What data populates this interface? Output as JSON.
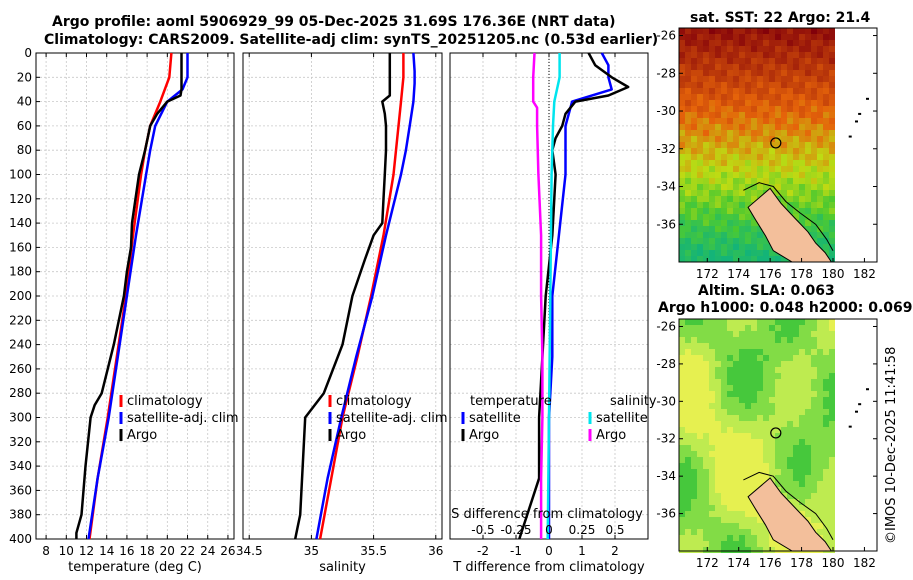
{
  "titles": {
    "line1": "Argo profile: aoml 5906929_99 05-Dec-2025 31.69S 176.36E (NRT data)",
    "line2": "Climatology: CARS2009. Satellite-adj clim: synTS_20251205.nc (0.53d earlier)",
    "sst": "sat. SST: 22 Argo: 21.4",
    "sla1": "Altim. SLA: 0.063",
    "sla2": "Argo h1000: 0.048 h2000: 0.069"
  },
  "credit": "©IMOS 10-Dec-2025 11:41:58",
  "colors": {
    "climatology": "#ff0000",
    "satellite": "#0000ff",
    "argo": "#000000",
    "sal_satellite": "#00e5ee",
    "sal_argo": "#ff00ff"
  },
  "chart_data": [
    {
      "type": "line",
      "name": "temperature",
      "xlabel": "temperature (deg C)",
      "ylabel": "",
      "xlim": [
        7,
        26.6
      ],
      "ylim": [
        0,
        400
      ],
      "y_inverted": true,
      "xticks": [
        "8",
        "10",
        "12",
        "14",
        "16",
        "18",
        "20",
        "22",
        "24",
        "26"
      ],
      "yticks": [
        "0",
        "20",
        "40",
        "60",
        "80",
        "100",
        "120",
        "140",
        "160",
        "180",
        "200",
        "220",
        "240",
        "260",
        "280",
        "300",
        "320",
        "340",
        "360",
        "380",
        "400"
      ],
      "legend": [
        "climatology",
        "satellite-adj. clim",
        "Argo"
      ],
      "series": [
        {
          "name": "climatology",
          "color": "red",
          "depth": [
            0,
            20,
            40,
            60,
            80,
            100,
            150,
            200,
            250,
            300,
            350,
            400
          ],
          "values": [
            20.4,
            20.2,
            19.3,
            18.3,
            17.8,
            17.4,
            16.6,
            15.9,
            15.0,
            14.1,
            13.1,
            12.3
          ]
        },
        {
          "name": "satellite-adj. clim",
          "color": "blue",
          "depth": [
            0,
            20,
            30,
            40,
            60,
            80,
            100,
            150,
            200,
            250,
            300,
            350,
            400
          ],
          "values": [
            22.0,
            22.0,
            21.5,
            20.0,
            18.8,
            18.3,
            17.9,
            16.9,
            16.0,
            15.1,
            14.2,
            13.1,
            12.2
          ]
        },
        {
          "name": "Argo",
          "color": "black",
          "depth": [
            0,
            10,
            30,
            35,
            40,
            50,
            60,
            80,
            100,
            140,
            160,
            180,
            200,
            240,
            280,
            290,
            300,
            340,
            380,
            395,
            400
          ],
          "values": [
            21.4,
            21.4,
            21.4,
            21.3,
            20.0,
            19.0,
            18.3,
            17.8,
            17.2,
            16.5,
            16.4,
            16.0,
            15.7,
            14.7,
            13.5,
            12.8,
            12.4,
            11.9,
            11.5,
            11.0,
            11.0
          ]
        }
      ]
    },
    {
      "type": "line",
      "name": "salinity",
      "xlabel": "salinity",
      "xlim": [
        34.45,
        36.05
      ],
      "ylim": [
        0,
        400
      ],
      "y_inverted": true,
      "xticks": [
        "34.5",
        "35",
        "35.5",
        "36"
      ],
      "legend": [
        "climatology",
        "satellite-adj. clim",
        "Argo"
      ],
      "series": [
        {
          "name": "climatology",
          "color": "red",
          "depth": [
            0,
            20,
            40,
            60,
            80,
            100,
            150,
            200,
            250,
            300,
            350,
            400
          ],
          "values": [
            35.74,
            35.74,
            35.72,
            35.7,
            35.68,
            35.66,
            35.58,
            35.48,
            35.37,
            35.25,
            35.16,
            35.07
          ]
        },
        {
          "name": "satellite-adj. clim",
          "color": "blue",
          "depth": [
            0,
            15,
            25,
            40,
            60,
            80,
            100,
            150,
            200,
            250,
            300,
            350,
            400
          ],
          "values": [
            35.82,
            35.83,
            35.83,
            35.82,
            35.79,
            35.76,
            35.72,
            35.6,
            35.49,
            35.36,
            35.24,
            35.13,
            35.04
          ]
        },
        {
          "name": "Argo",
          "color": "black",
          "depth": [
            0,
            20,
            35,
            40,
            50,
            60,
            80,
            100,
            120,
            140,
            150,
            170,
            200,
            240,
            280,
            300,
            340,
            380,
            390,
            400
          ],
          "values": [
            35.63,
            35.63,
            35.63,
            35.57,
            35.59,
            35.6,
            35.6,
            35.59,
            35.58,
            35.57,
            35.5,
            35.43,
            35.33,
            35.25,
            35.1,
            34.95,
            34.93,
            34.91,
            34.89,
            34.87
          ]
        }
      ]
    },
    {
      "type": "line",
      "name": "differences",
      "xlabel": "T difference from climatology",
      "xlabel_top": "S difference from climatology",
      "xlim": [
        -3,
        3
      ],
      "xlim_salinity": [
        -0.75,
        0.75
      ],
      "ylim": [
        0,
        400
      ],
      "y_inverted": true,
      "xticks": [
        "-2",
        "-1",
        "0",
        "1",
        "2"
      ],
      "xticks_top": [
        "-0.5",
        "-0.25",
        "0",
        "0.25",
        "0.5"
      ],
      "legend_temperature": {
        "title": "temperature",
        "items": [
          "satellite",
          "Argo"
        ]
      },
      "legend_salinity": {
        "title": "salinity",
        "items": [
          "satellite",
          "Argo"
        ]
      },
      "series": [
        {
          "name": "temperature satellite",
          "color": "blue",
          "depth": [
            0,
            10,
            20,
            30,
            40,
            60,
            80,
            100,
            150,
            200,
            250,
            300,
            350,
            400
          ],
          "values": [
            1.6,
            1.8,
            1.8,
            1.9,
            0.7,
            0.5,
            0.5,
            0.5,
            0.3,
            0.1,
            0.1,
            0.0,
            0.0,
            0.0
          ]
        },
        {
          "name": "temperature Argo",
          "color": "black",
          "depth": [
            0,
            10,
            20,
            28,
            35,
            40,
            50,
            60,
            70,
            80,
            100,
            150,
            200,
            250,
            300,
            350,
            400
          ],
          "values": [
            1.2,
            1.4,
            1.9,
            2.4,
            1.8,
            0.8,
            0.5,
            0.4,
            0.2,
            0.1,
            0.2,
            0.1,
            -0.1,
            -0.2,
            -0.3,
            -0.3,
            -0.9
          ]
        },
        {
          "name": "salinity satellite",
          "color": "cyan",
          "depth": [
            0,
            20,
            40,
            60,
            100,
            200,
            300,
            400
          ],
          "values": [
            0.08,
            0.08,
            0.04,
            0.03,
            0.02,
            0.01,
            0.0,
            -0.01
          ]
        },
        {
          "name": "salinity Argo",
          "color": "magenta",
          "depth": [
            0,
            20,
            40,
            45,
            60,
            100,
            150,
            200,
            250,
            300,
            350,
            400
          ],
          "values": [
            -0.11,
            -0.12,
            -0.12,
            -0.09,
            -0.09,
            -0.08,
            -0.06,
            -0.06,
            -0.05,
            -0.05,
            -0.06,
            -0.06
          ]
        }
      ]
    },
    {
      "type": "heatmap",
      "name": "sst-map",
      "title": "sat. SST: 22 Argo: 21.4",
      "xlim": [
        170.2,
        182.8
      ],
      "ylim": [
        -38,
        -25.6
      ],
      "xticks": [
        "172",
        "174",
        "176",
        "178",
        "180",
        "182"
      ],
      "yticks": [
        "-26",
        "-28",
        "-30",
        "-32",
        "-34",
        "-36"
      ],
      "argo_position": {
        "lon": 176.36,
        "lat": -31.69
      }
    },
    {
      "type": "heatmap",
      "name": "sla-map",
      "title": "Altim. SLA: 0.063",
      "xlim": [
        170.2,
        182.8
      ],
      "ylim": [
        -38,
        -25.6
      ],
      "xticks": [
        "172",
        "174",
        "176",
        "178",
        "180",
        "182"
      ],
      "yticks": [
        "-26",
        "-28",
        "-30",
        "-32",
        "-34",
        "-36"
      ],
      "argo_position": {
        "lon": 176.36,
        "lat": -31.69
      }
    }
  ]
}
